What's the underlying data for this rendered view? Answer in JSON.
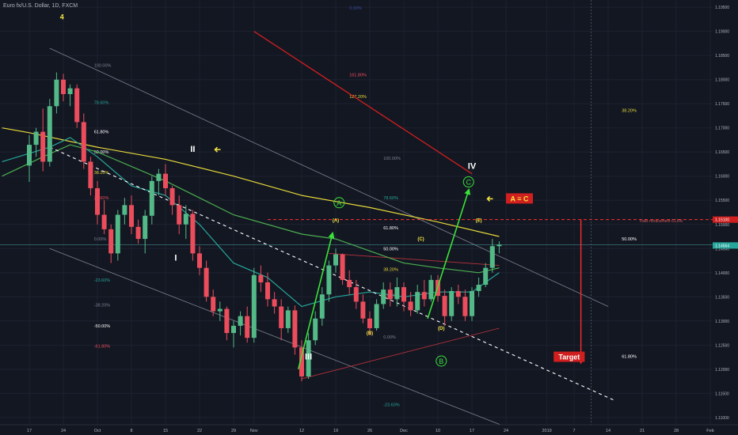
{
  "title": "Euro fx/U.S. Dollar, 1D, FXCM",
  "colors": {
    "background": "#131722",
    "up": "#53b987",
    "down": "#eb4d5c",
    "grid": "#1e2230",
    "axis_text": "#b2b5be",
    "ma_yellow": "#e6d93a",
    "ma_green": "#4caf50",
    "ma_teal": "#26a69a",
    "red_line": "#d01f1f",
    "arrow_green": "#39e339",
    "arrow_red": "#ff2d2d",
    "wave_white": "#ffffff",
    "wave_yellow": "#f5e642",
    "channel": "#7d8191"
  },
  "chart_data": {
    "type": "candlestick",
    "symbol": "Euro fx/U.S. Dollar",
    "timeframe": "1D",
    "ylim": [
      1.1085,
      1.1965
    ],
    "price_ticks": [
      "1.19500",
      "1.19000",
      "1.18500",
      "1.18000",
      "1.17500",
      "1.17000",
      "1.16500",
      "1.16000",
      "1.15500",
      "1.15000",
      "1.14500",
      "1.14000",
      "1.13500",
      "1.13000",
      "1.12500",
      "1.12000",
      "1.11500",
      "1.11000"
    ],
    "price_tick_values": [
      1.195,
      1.19,
      1.185,
      1.18,
      1.175,
      1.17,
      1.165,
      1.16,
      1.155,
      1.15,
      1.145,
      1.14,
      1.135,
      1.13,
      1.125,
      1.12,
      1.115,
      1.11
    ],
    "x_tick_labels": [
      {
        "label": "17",
        "day": 0
      },
      {
        "label": "24",
        "day": 5
      },
      {
        "label": "Oct",
        "day": 10
      },
      {
        "label": "8",
        "day": 15
      },
      {
        "label": "15",
        "day": 20
      },
      {
        "label": "22",
        "day": 25
      },
      {
        "label": "29",
        "day": 30
      },
      {
        "label": "Nov",
        "day": 33
      },
      {
        "label": "12",
        "day": 40
      },
      {
        "label": "19",
        "day": 45
      },
      {
        "label": "26",
        "day": 50
      },
      {
        "label": "Dec",
        "day": 55
      },
      {
        "label": "10",
        "day": 60
      },
      {
        "label": "17",
        "day": 65
      },
      {
        "label": "24",
        "day": 70
      },
      {
        "label": "2019",
        "day": 76
      },
      {
        "label": "7",
        "day": 80
      },
      {
        "label": "14",
        "day": 85
      },
      {
        "label": "21",
        "day": 90
      },
      {
        "label": "28",
        "day": 95
      },
      {
        "label": "Feb",
        "day": 100
      }
    ],
    "candles": [
      [
        0,
        1.1622,
        1.1685,
        1.1588,
        1.1665
      ],
      [
        1,
        1.1665,
        1.17,
        1.164,
        1.1692
      ],
      [
        2,
        1.1692,
        1.174,
        1.161,
        1.163
      ],
      [
        3,
        1.163,
        1.176,
        1.162,
        1.1745
      ],
      [
        4,
        1.1745,
        1.1815,
        1.173,
        1.18
      ],
      [
        5,
        1.18,
        1.1812,
        1.1755,
        1.177
      ],
      [
        6,
        1.177,
        1.179,
        1.1745,
        1.1782
      ],
      [
        7,
        1.1782,
        1.179,
        1.17,
        1.1712
      ],
      [
        8,
        1.1712,
        1.173,
        1.1615,
        1.163
      ],
      [
        9,
        1.163,
        1.164,
        1.156,
        1.1575
      ],
      [
        10,
        1.1575,
        1.159,
        1.15,
        1.152
      ],
      [
        11,
        1.152,
        1.155,
        1.148,
        1.149
      ],
      [
        12,
        1.149,
        1.15,
        1.142,
        1.144
      ],
      [
        13,
        1.144,
        1.153,
        1.1425,
        1.152
      ],
      [
        14,
        1.152,
        1.1555,
        1.15,
        1.154
      ],
      [
        15,
        1.154,
        1.156,
        1.148,
        1.1495
      ],
      [
        16,
        1.1495,
        1.151,
        1.146,
        1.147
      ],
      [
        17,
        1.147,
        1.153,
        1.144,
        1.1518
      ],
      [
        18,
        1.1518,
        1.16,
        1.15,
        1.159
      ],
      [
        19,
        1.159,
        1.1615,
        1.156,
        1.1605
      ],
      [
        20,
        1.1605,
        1.1625,
        1.156,
        1.1575
      ],
      [
        21,
        1.1575,
        1.158,
        1.152,
        1.154
      ],
      [
        22,
        1.154,
        1.156,
        1.148,
        1.15
      ],
      [
        23,
        1.15,
        1.154,
        1.147,
        1.1522
      ],
      [
        24,
        1.1522,
        1.153,
        1.1425,
        1.144
      ],
      [
        25,
        1.144,
        1.1455,
        1.1395,
        1.141
      ],
      [
        26,
        1.141,
        1.1425,
        1.134,
        1.135
      ],
      [
        27,
        1.135,
        1.1365,
        1.131,
        1.132
      ],
      [
        28,
        1.132,
        1.134,
        1.13,
        1.1325
      ],
      [
        29,
        1.1325,
        1.133,
        1.126,
        1.1275
      ],
      [
        30,
        1.1275,
        1.13,
        1.1245,
        1.129
      ],
      [
        31,
        1.129,
        1.132,
        1.127,
        1.131
      ],
      [
        32,
        1.131,
        1.133,
        1.1255,
        1.1265
      ],
      [
        33,
        1.1265,
        1.141,
        1.1255,
        1.1395
      ],
      [
        34,
        1.1395,
        1.1415,
        1.136,
        1.138
      ],
      [
        35,
        1.138,
        1.14,
        1.133,
        1.1345
      ],
      [
        36,
        1.1345,
        1.136,
        1.1315,
        1.133
      ],
      [
        37,
        1.133,
        1.1345,
        1.126,
        1.1285
      ],
      [
        38,
        1.1285,
        1.133,
        1.1275,
        1.1322
      ],
      [
        39,
        1.1322,
        1.1332,
        1.123,
        1.1245
      ],
      [
        40,
        1.1245,
        1.126,
        1.1175,
        1.1185
      ],
      [
        41,
        1.1185,
        1.1275,
        1.118,
        1.126
      ],
      [
        42,
        1.126,
        1.132,
        1.125,
        1.1305
      ],
      [
        43,
        1.1305,
        1.137,
        1.129,
        1.1355
      ],
      [
        44,
        1.1355,
        1.1425,
        1.134,
        1.1415
      ],
      [
        45,
        1.1415,
        1.145,
        1.14,
        1.1438
      ],
      [
        46,
        1.1438,
        1.144,
        1.1375,
        1.1385
      ],
      [
        47,
        1.1385,
        1.1405,
        1.1355,
        1.137
      ],
      [
        48,
        1.137,
        1.1385,
        1.1325,
        1.134
      ],
      [
        49,
        1.134,
        1.1355,
        1.1295,
        1.1305
      ],
      [
        50,
        1.1305,
        1.132,
        1.127,
        1.1285
      ],
      [
        51,
        1.1285,
        1.1345,
        1.128,
        1.1335
      ],
      [
        52,
        1.1335,
        1.138,
        1.1325,
        1.1365
      ],
      [
        53,
        1.1365,
        1.138,
        1.133,
        1.1345
      ],
      [
        54,
        1.1345,
        1.139,
        1.133,
        1.137
      ],
      [
        55,
        1.137,
        1.138,
        1.132,
        1.134
      ],
      [
        56,
        1.134,
        1.136,
        1.131,
        1.1322
      ],
      [
        57,
        1.1322,
        1.1375,
        1.1315,
        1.136
      ],
      [
        58,
        1.136,
        1.1385,
        1.133,
        1.1345
      ],
      [
        59,
        1.1345,
        1.1395,
        1.134,
        1.1385
      ],
      [
        60,
        1.1385,
        1.1395,
        1.134,
        1.1352
      ],
      [
        61,
        1.1352,
        1.1365,
        1.129,
        1.131
      ],
      [
        62,
        1.131,
        1.137,
        1.13,
        1.1362
      ],
      [
        63,
        1.1362,
        1.1375,
        1.1335,
        1.135
      ],
      [
        64,
        1.135,
        1.1365,
        1.13,
        1.131
      ],
      [
        65,
        1.131,
        1.137,
        1.13,
        1.1362
      ],
      [
        66,
        1.1362,
        1.139,
        1.135,
        1.1375
      ],
      [
        67,
        1.1375,
        1.142,
        1.137,
        1.141
      ],
      [
        68,
        1.141,
        1.147,
        1.14,
        1.1455
      ],
      [
        69,
        1.1455,
        1.1465,
        1.144,
        1.1458
      ]
    ],
    "moving_averages": [
      {
        "color": "#e6d93a",
        "points": [
          [
            -4,
            1.17
          ],
          [
            0,
            1.169
          ],
          [
            10,
            1.166
          ],
          [
            20,
            1.1635
          ],
          [
            30,
            1.16
          ],
          [
            40,
            1.156
          ],
          [
            50,
            1.1535
          ],
          [
            60,
            1.1505
          ],
          [
            69,
            1.1475
          ]
        ]
      },
      {
        "color": "#4caf50",
        "points": [
          [
            -4,
            1.16
          ],
          [
            2,
            1.164
          ],
          [
            6,
            1.1665
          ],
          [
            10,
            1.165
          ],
          [
            20,
            1.159
          ],
          [
            30,
            1.152
          ],
          [
            40,
            1.148
          ],
          [
            45,
            1.147
          ],
          [
            50,
            1.1445
          ],
          [
            55,
            1.142
          ],
          [
            60,
            1.141
          ],
          [
            66,
            1.14
          ],
          [
            69,
            1.141
          ]
        ]
      },
      {
        "color": "#26a69a",
        "points": [
          [
            -4,
            1.163
          ],
          [
            3,
            1.166
          ],
          [
            6,
            1.168
          ],
          [
            10,
            1.164
          ],
          [
            15,
            1.158
          ],
          [
            20,
            1.156
          ],
          [
            25,
            1.15
          ],
          [
            30,
            1.142
          ],
          [
            35,
            1.139
          ],
          [
            40,
            1.133
          ],
          [
            45,
            1.135
          ],
          [
            50,
            1.136
          ],
          [
            55,
            1.135
          ],
          [
            60,
            1.136
          ],
          [
            65,
            1.136
          ],
          [
            69,
            1.14
          ]
        ]
      }
    ],
    "support_line": {
      "color": "#ffffff",
      "dash": true,
      "points": [
        [
          3,
          1.166
        ],
        [
          86,
          1.1135
        ]
      ]
    },
    "red_trendline": {
      "color": "#d01f1f",
      "points": [
        [
          33,
          1.19
        ],
        [
          65,
          1.1605
        ]
      ]
    },
    "channel_lines": [
      {
        "points": [
          [
            3,
            1.1865
          ],
          [
            85,
            1.133
          ]
        ]
      },
      {
        "points": [
          [
            3,
            1.145
          ],
          [
            71,
            1.1075
          ]
        ]
      }
    ],
    "red_lines_small": [
      {
        "points": [
          [
            40,
            1.118
          ],
          [
            69,
            1.1285
          ]
        ]
      },
      {
        "points": [
          [
            44,
            1.144
          ],
          [
            69,
            1.1415
          ]
        ]
      }
    ],
    "fib_left": [
      {
        "label": "100.00%",
        "price": 1.183,
        "day": 9.5,
        "color": "#7d8191"
      },
      {
        "label": "78.60%",
        "price": 1.1753,
        "day": 9.5,
        "color": "#26a69a"
      },
      {
        "label": "61.80%",
        "price": 1.1692,
        "day": 9.5,
        "color": "#ffffff"
      },
      {
        "label": "50.00%",
        "price": 1.165,
        "day": 9.5,
        "color": "#ffffff"
      },
      {
        "label": "38.20%",
        "price": 1.1608,
        "day": 9.5,
        "color": "#e6d93a"
      },
      {
        "label": "23.60%",
        "price": 1.1555,
        "day": 9.5,
        "color": "#eb4d5c"
      },
      {
        "label": "0.00%",
        "price": 1.147,
        "day": 9.5,
        "color": "#7d8191"
      },
      {
        "label": "-23.60%",
        "price": 1.1385,
        "day": 9.5,
        "color": "#26a69a"
      },
      {
        "label": "-38.20%",
        "price": 1.1333,
        "day": 9.5,
        "color": "#7d8191"
      },
      {
        "label": "-50.00%",
        "price": 1.129,
        "day": 9.5,
        "color": "#ffffff"
      },
      {
        "label": "-61.80%",
        "price": 1.1248,
        "day": 9.5,
        "color": "#eb4d5c"
      }
    ],
    "fib_mid": [
      {
        "label": "161.80%",
        "price": 1.181,
        "day": 47,
        "color": "#eb4d5c"
      },
      {
        "label": "127.20%",
        "price": 1.1765,
        "day": 47,
        "color": "#e6d93a"
      },
      {
        "label": "100.00%",
        "price": 1.1637,
        "day": 52,
        "color": "#7d8191"
      },
      {
        "label": "78.60%",
        "price": 1.1555,
        "day": 52,
        "color": "#26a69a"
      },
      {
        "label": "61.80%",
        "price": 1.1493,
        "day": 52,
        "color": "#ffffff"
      },
      {
        "label": "50.00%",
        "price": 1.145,
        "day": 52,
        "color": "#ffffff"
      },
      {
        "label": "38.20%",
        "price": 1.1407,
        "day": 52,
        "color": "#e6d93a"
      },
      {
        "label": "23.60%",
        "price": 1.1353,
        "day": 52,
        "color": "#eb4d5c"
      },
      {
        "label": "0.00%",
        "price": 1.1267,
        "day": 52,
        "color": "#7d8191"
      },
      {
        "label": "-23.60%",
        "price": 1.1127,
        "day": 52,
        "color": "#26a69a"
      }
    ],
    "fib_right": [
      {
        "label": "38.20%",
        "price": 1.1736,
        "day": 87,
        "color": "#e6d93a"
      },
      {
        "label": "50.00%",
        "price": 1.147,
        "day": 87,
        "color": "#ffffff"
      },
      {
        "label": "61.80%",
        "price": 1.1227,
        "day": 87,
        "color": "#ffffff"
      }
    ],
    "waves": [
      {
        "label": "4",
        "day": 4.8,
        "price": 1.1925,
        "color": "#f5e642",
        "size": 9
      },
      {
        "label": "II",
        "day": 24,
        "price": 1.165,
        "color": "#ffffff",
        "size": 11
      },
      {
        "label": "I",
        "day": 21.5,
        "price": 1.1425,
        "color": "#ffffff",
        "size": 11
      },
      {
        "label": "III",
        "day": 41,
        "price": 1.122,
        "color": "#ffffff",
        "size": 11
      },
      {
        "label": "IV",
        "day": 65,
        "price": 1.1615,
        "color": "#ffffff",
        "size": 11
      },
      {
        "label": "(A)",
        "day": 45,
        "price": 1.1505,
        "color": "#f5e642",
        "size": 6
      },
      {
        "label": "(B)",
        "day": 50,
        "price": 1.1272,
        "color": "#f5e642",
        "size": 6
      },
      {
        "label": "(C)",
        "day": 57.5,
        "price": 1.1467,
        "color": "#f5e642",
        "size": 6
      },
      {
        "label": "(D)",
        "day": 60.5,
        "price": 1.1282,
        "color": "#f5e642",
        "size": 6
      },
      {
        "label": "(E)",
        "day": 66,
        "price": 1.1505,
        "color": "#f5e642",
        "size": 6
      }
    ],
    "wave_circles": [
      {
        "label": "A",
        "day": 45.5,
        "price": 1.1545
      },
      {
        "label": "B",
        "day": 60.5,
        "price": 1.1217
      },
      {
        "label": "C",
        "day": 64.5,
        "price": 1.1588
      }
    ],
    "arrows_green": [
      {
        "from": [
          39.5,
          1.12
        ],
        "to": [
          44.5,
          1.148
        ]
      },
      {
        "from": [
          58.5,
          1.1305
        ],
        "to": [
          64.5,
          1.157
        ]
      }
    ],
    "arrow_target": {
      "from": [
        81,
        1.151
      ],
      "to": [
        81,
        1.1215
      ]
    },
    "yellow_arrows": [
      {
        "day": 27.5,
        "price": 1.1655
      },
      {
        "day": 67.5,
        "price": 1.1553
      }
    ],
    "ac_badge": {
      "text": "A = C",
      "day": 70,
      "price": 1.1553
    },
    "target_badge": {
      "text": "Target",
      "day": 77,
      "price": 1.1225
    },
    "dashed_level": {
      "price": 1.151,
      "start_day": 35,
      "color": "#ff2d2d"
    },
    "level_note": {
      "text": "Falls retracement 61.8%",
      "price": 1.1508
    },
    "current_price": {
      "label": "1.14564",
      "value": 1.14564
    },
    "current_line_price": 1.1458,
    "target_line_day": 82.5,
    "level_1510_label": "1.15100",
    "top_label": {
      "text": "0.00%",
      "day": 47,
      "price": 1.1945
    }
  }
}
